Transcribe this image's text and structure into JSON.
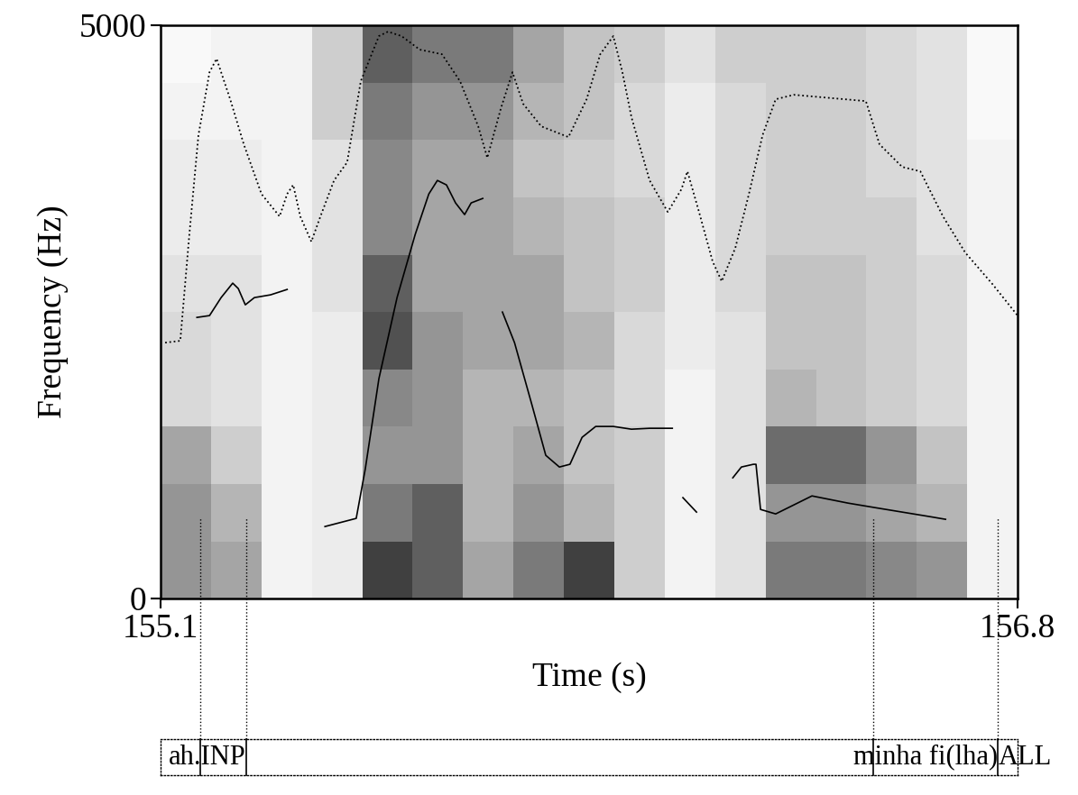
{
  "chart_data": {
    "type": "spectrogram",
    "xlabel": "Time (s)",
    "ylabel": "Frequency (Hz)",
    "xlim": [
      155.1,
      156.8
    ],
    "ylim": [
      0,
      5000
    ],
    "xticks": [
      155.1,
      156.8
    ],
    "yticks": [
      0,
      5000
    ],
    "spectrogram": {
      "times": [
        155.1,
        155.2,
        155.3,
        155.4,
        155.5,
        155.6,
        155.7,
        155.8,
        155.9,
        156.0,
        156.1,
        156.2,
        156.3,
        156.4,
        156.5,
        156.6,
        156.7,
        156.8
      ],
      "frequencies": [
        0,
        500,
        1000,
        1500,
        2000,
        2500,
        3000,
        3500,
        4000,
        4500,
        5000
      ],
      "cell_range": [
        0,
        1
      ],
      "cells": [
        [
          0.5,
          0.5,
          0.45,
          0.25,
          0.25,
          0.2,
          0.15,
          0.15,
          0.1,
          0.05
        ],
        [
          0.45,
          0.4,
          0.3,
          0.2,
          0.2,
          0.2,
          0.15,
          0.15,
          0.1,
          0.1
        ],
        [
          0.1,
          0.1,
          0.1,
          0.1,
          0.1,
          0.1,
          0.1,
          0.1,
          0.1,
          0.1
        ],
        [
          0.15,
          0.15,
          0.15,
          0.15,
          0.15,
          0.2,
          0.2,
          0.2,
          0.3,
          0.3
        ],
        [
          0.8,
          0.6,
          0.5,
          0.55,
          0.75,
          0.7,
          0.55,
          0.55,
          0.6,
          0.7
        ],
        [
          0.7,
          0.7,
          0.5,
          0.5,
          0.5,
          0.45,
          0.45,
          0.45,
          0.5,
          0.6
        ],
        [
          0.45,
          0.4,
          0.4,
          0.4,
          0.45,
          0.45,
          0.45,
          0.45,
          0.5,
          0.6
        ],
        [
          0.6,
          0.5,
          0.45,
          0.4,
          0.45,
          0.45,
          0.4,
          0.35,
          0.4,
          0.45
        ],
        [
          0.8,
          0.4,
          0.35,
          0.35,
          0.4,
          0.35,
          0.35,
          0.3,
          0.35,
          0.35
        ],
        [
          0.3,
          0.3,
          0.3,
          0.25,
          0.25,
          0.3,
          0.3,
          0.25,
          0.25,
          0.3
        ],
        [
          0.1,
          0.1,
          0.1,
          0.1,
          0.15,
          0.15,
          0.15,
          0.15,
          0.15,
          0.2
        ],
        [
          0.2,
          0.2,
          0.2,
          0.2,
          0.2,
          0.25,
          0.25,
          0.25,
          0.25,
          0.3
        ],
        [
          0.6,
          0.5,
          0.65,
          0.4,
          0.35,
          0.35,
          0.3,
          0.3,
          0.3,
          0.3
        ],
        [
          0.6,
          0.5,
          0.65,
          0.35,
          0.35,
          0.35,
          0.3,
          0.3,
          0.3,
          0.3
        ],
        [
          0.55,
          0.45,
          0.5,
          0.3,
          0.3,
          0.3,
          0.3,
          0.25,
          0.25,
          0.25
        ],
        [
          0.5,
          0.4,
          0.35,
          0.25,
          0.25,
          0.25,
          0.2,
          0.2,
          0.2,
          0.2
        ],
        [
          0.1,
          0.1,
          0.1,
          0.1,
          0.1,
          0.1,
          0.1,
          0.1,
          0.05,
          0.05
        ]
      ]
    },
    "series": [
      {
        "type": "line",
        "color": "#000000",
        "line_style": "solid",
        "x": [
          155.172,
          155.197,
          155.22,
          155.243,
          155.254,
          155.268,
          155.286,
          155.318,
          155.351,
          155.39,
          155.426,
          155.488,
          155.506,
          155.533,
          155.569,
          155.605,
          155.632,
          155.649,
          155.667,
          155.685,
          155.703,
          155.716,
          155.739,
          155.76,
          155.778,
          155.802,
          155.837,
          155.864,
          155.891,
          155.912,
          155.936,
          155.963,
          155.998,
          156.034,
          156.07,
          156.115,
          156.125,
          156.136,
          156.163,
          156.2,
          156.235,
          156.252,
          156.276,
          156.281,
          156.29,
          156.32,
          156.392,
          156.464,
          156.517,
          156.571,
          156.625,
          156.657
        ],
        "values": [
          2453,
          2469,
          2626,
          2752,
          2705,
          2563,
          2626,
          2650,
          2697,
          null,
          629,
          700,
          1132,
          1919,
          2626,
          3177,
          3530,
          3648,
          3609,
          3452,
          3350,
          3452,
          3491,
          null,
          2500,
          2233,
          1683,
          1250,
          1148,
          1172,
          1407,
          1502,
          1502,
          1478,
          1486,
          1486,
          null,
          881,
          755,
          null,
          1054,
          1148,
          1172,
          1172,
          778,
          739,
          896,
          833,
          794,
          755,
          716,
          692
        ]
      },
      {
        "type": "line",
        "color": "#000000",
        "line_style": "dotted",
        "x": [
          155.109,
          155.139,
          155.157,
          155.175,
          155.197,
          155.211,
          155.238,
          155.265,
          155.3,
          155.336,
          155.351,
          155.363,
          155.377,
          155.399,
          155.417,
          155.444,
          155.47,
          155.497,
          155.533,
          155.551,
          155.578,
          155.614,
          155.658,
          155.694,
          155.73,
          155.748,
          155.775,
          155.798,
          155.819,
          155.855,
          155.909,
          155.945,
          155.972,
          155.998,
          156.016,
          156.034,
          156.07,
          156.106,
          156.133,
          156.145,
          156.168,
          156.195,
          156.213,
          156.24,
          156.267,
          156.294,
          156.32,
          156.356,
          156.499,
          156.526,
          156.571,
          156.607,
          156.652,
          156.696,
          156.75,
          156.8
        ],
        "values": [
          2233,
          2249,
          3177,
          4042,
          4592,
          4710,
          4356,
          3963,
          3530,
          3334,
          3530,
          3609,
          3334,
          3114,
          3334,
          3648,
          3806,
          4513,
          4907,
          4946,
          4907,
          4789,
          4749,
          4513,
          4120,
          3845,
          4277,
          4592,
          4317,
          4120,
          4026,
          4356,
          4749,
          4907,
          4592,
          4199,
          3648,
          3373,
          3570,
          3727,
          3373,
          2941,
          2768,
          3059,
          3530,
          4042,
          4356,
          4395,
          4340,
          3963,
          3766,
          3727,
          3334,
          3019,
          2744,
          2469
        ]
      }
    ],
    "tiers": [
      {
        "boundaries": [
          155.179,
          155.27,
          156.514,
          156.761
        ],
        "intervals": [
          {
            "label": "ah.INP",
            "start": 155.179,
            "end": 155.27
          },
          {
            "label": "minha fi(lha)",
            "start": 156.514,
            "end": 156.761
          },
          {
            "label": "ALL",
            "start": 156.761,
            "end": 156.8
          }
        ]
      }
    ]
  }
}
